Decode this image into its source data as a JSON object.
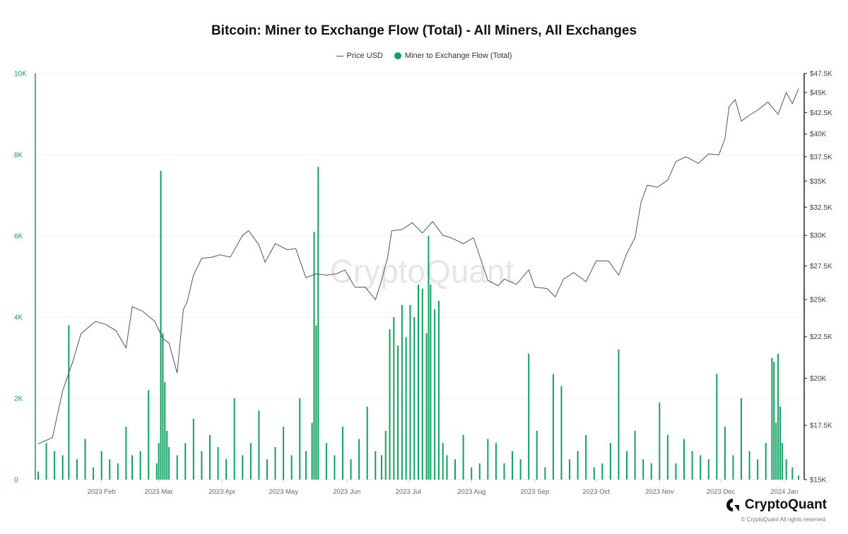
{
  "chart_data": {
    "type": "bar+line",
    "title": "Bitcoin: Miner to Exchange Flow (Total) - All Miners, All Exchanges",
    "legend": [
      {
        "label": "Price USD",
        "marker": "line",
        "color": "#555555"
      },
      {
        "label": "Miner to Exchange Flow (Total)",
        "marker": "dot",
        "color": "#10a060"
      }
    ],
    "x_range": [
      "2023-01-01",
      "2024-01-08"
    ],
    "x_ticks": [
      "2023 Feb",
      "2023 Mar",
      "2023 Apr",
      "2023 May",
      "2023 Jun",
      "2023 Jul",
      "2023 Aug",
      "2023 Sep",
      "2023 Oct",
      "2023 Nov",
      "2023 Dec",
      "2024 Jan"
    ],
    "y_left": {
      "label": "",
      "range": [
        0,
        10000
      ],
      "ticks": [
        "0",
        "2K",
        "4K",
        "6K",
        "8K",
        "10K"
      ],
      "color": "#1f9a5c"
    },
    "y_right": {
      "label": "",
      "scale": "log",
      "range": [
        15000,
        47500
      ],
      "ticks": [
        "$15K",
        "$17.5K",
        "$20K",
        "$22.5K",
        "$25K",
        "$27.5K",
        "$30K",
        "$32.5K",
        "$35K",
        "$37.5K",
        "$40K",
        "$42.5K",
        "$45K",
        "$47.5K"
      ],
      "tick_values": [
        15000,
        17500,
        20000,
        22500,
        25000,
        27500,
        30000,
        32500,
        35000,
        37500,
        40000,
        42500,
        45000,
        47500
      ]
    },
    "series": [
      {
        "name": "Miner to Exchange Flow (Total)",
        "type": "bar",
        "color": "#10a060",
        "x": [
          "2023-01-01",
          "2023-01-05",
          "2023-01-09",
          "2023-01-13",
          "2023-01-16",
          "2023-01-20",
          "2023-01-24",
          "2023-01-28",
          "2023-02-01",
          "2023-02-05",
          "2023-02-09",
          "2023-02-13",
          "2023-02-16",
          "2023-02-20",
          "2023-02-24",
          "2023-02-28",
          "2023-03-01",
          "2023-03-02",
          "2023-03-03",
          "2023-03-04",
          "2023-03-05",
          "2023-03-06",
          "2023-03-10",
          "2023-03-14",
          "2023-03-18",
          "2023-03-22",
          "2023-03-26",
          "2023-03-30",
          "2023-04-03",
          "2023-04-07",
          "2023-04-11",
          "2023-04-15",
          "2023-04-19",
          "2023-04-23",
          "2023-04-27",
          "2023-05-01",
          "2023-05-05",
          "2023-05-09",
          "2023-05-12",
          "2023-05-15",
          "2023-05-16",
          "2023-05-17",
          "2023-05-18",
          "2023-05-22",
          "2023-05-26",
          "2023-05-30",
          "2023-06-03",
          "2023-06-07",
          "2023-06-11",
          "2023-06-15",
          "2023-06-18",
          "2023-06-20",
          "2023-06-22",
          "2023-06-24",
          "2023-06-26",
          "2023-06-28",
          "2023-06-30",
          "2023-07-02",
          "2023-07-04",
          "2023-07-06",
          "2023-07-08",
          "2023-07-10",
          "2023-07-11",
          "2023-07-12",
          "2023-07-14",
          "2023-07-16",
          "2023-07-18",
          "2023-07-20",
          "2023-07-24",
          "2023-07-28",
          "2023-08-01",
          "2023-08-05",
          "2023-08-09",
          "2023-08-13",
          "2023-08-17",
          "2023-08-21",
          "2023-08-25",
          "2023-08-29",
          "2023-09-02",
          "2023-09-06",
          "2023-09-10",
          "2023-09-14",
          "2023-09-18",
          "2023-09-22",
          "2023-09-26",
          "2023-09-30",
          "2023-10-04",
          "2023-10-08",
          "2023-10-12",
          "2023-10-16",
          "2023-10-20",
          "2023-10-24",
          "2023-10-28",
          "2023-11-01",
          "2023-11-05",
          "2023-11-09",
          "2023-11-13",
          "2023-11-17",
          "2023-11-21",
          "2023-11-25",
          "2023-11-29",
          "2023-12-03",
          "2023-12-07",
          "2023-12-11",
          "2023-12-15",
          "2023-12-19",
          "2023-12-23",
          "2023-12-26",
          "2023-12-27",
          "2023-12-28",
          "2023-12-29",
          "2023-12-30",
          "2023-12-31",
          "2024-01-02",
          "2024-01-05",
          "2024-01-08"
        ],
        "values": [
          200,
          900,
          700,
          600,
          3800,
          500,
          1000,
          300,
          700,
          500,
          400,
          1300,
          600,
          700,
          2200,
          400,
          900,
          7600,
          3600,
          2400,
          1200,
          800,
          600,
          900,
          1500,
          700,
          1100,
          800,
          500,
          2000,
          600,
          900,
          1700,
          500,
          800,
          1300,
          600,
          2000,
          700,
          1400,
          6100,
          3800,
          7700,
          900,
          600,
          1300,
          500,
          1000,
          1800,
          700,
          600,
          1200,
          3700,
          4000,
          3300,
          4300,
          3500,
          4300,
          4000,
          4800,
          4700,
          3600,
          6000,
          4800,
          4200,
          4400,
          900,
          600,
          500,
          1100,
          300,
          400,
          1000,
          900,
          400,
          700,
          500,
          3100,
          1200,
          300,
          2600,
          2300,
          500,
          700,
          1100,
          300,
          400,
          900,
          3200,
          700,
          1200,
          500,
          400,
          1900,
          1100,
          400,
          1000,
          700,
          600,
          500,
          2600,
          1300,
          600,
          2000,
          700,
          500,
          900,
          3000,
          2900,
          1400,
          3100,
          1800,
          900,
          500,
          300,
          100
        ]
      },
      {
        "name": "Price USD",
        "type": "line",
        "color": "#555555",
        "x": [
          "2023-01-01",
          "2023-01-08",
          "2023-01-13",
          "2023-01-18",
          "2023-01-22",
          "2023-01-29",
          "2023-02-03",
          "2023-02-08",
          "2023-02-13",
          "2023-02-16",
          "2023-02-21",
          "2023-02-27",
          "2023-03-03",
          "2023-03-06",
          "2023-03-10",
          "2023-03-13",
          "2023-03-15",
          "2023-03-18",
          "2023-03-22",
          "2023-03-27",
          "2023-03-31",
          "2023-04-05",
          "2023-04-11",
          "2023-04-14",
          "2023-04-19",
          "2023-04-22",
          "2023-04-27",
          "2023-05-03",
          "2023-05-07",
          "2023-05-12",
          "2023-05-17",
          "2023-05-22",
          "2023-05-27",
          "2023-05-31",
          "2023-06-05",
          "2023-06-10",
          "2023-06-15",
          "2023-06-18",
          "2023-06-21",
          "2023-06-23",
          "2023-06-28",
          "2023-07-03",
          "2023-07-08",
          "2023-07-13",
          "2023-07-18",
          "2023-07-22",
          "2023-07-28",
          "2023-08-02",
          "2023-08-09",
          "2023-08-14",
          "2023-08-17",
          "2023-08-23",
          "2023-08-29",
          "2023-09-01",
          "2023-09-07",
          "2023-09-11",
          "2023-09-15",
          "2023-09-20",
          "2023-09-26",
          "2023-10-01",
          "2023-10-07",
          "2023-10-12",
          "2023-10-16",
          "2023-10-20",
          "2023-10-23",
          "2023-10-26",
          "2023-10-31",
          "2023-11-05",
          "2023-11-09",
          "2023-11-14",
          "2023-11-20",
          "2023-11-25",
          "2023-11-30",
          "2023-12-03",
          "2023-12-05",
          "2023-12-08",
          "2023-12-11",
          "2023-12-15",
          "2023-12-19",
          "2023-12-24",
          "2023-12-29",
          "2024-01-02",
          "2024-01-05",
          "2024-01-08"
        ],
        "values": [
          16600,
          16900,
          19300,
          21000,
          22700,
          23500,
          23300,
          22900,
          21800,
          24500,
          24200,
          23500,
          22400,
          22100,
          20300,
          24300,
          24900,
          26800,
          28100,
          28200,
          28400,
          28200,
          30000,
          30400,
          29200,
          27800,
          29300,
          28800,
          28900,
          26600,
          26900,
          26800,
          26900,
          27200,
          25900,
          25900,
          25000,
          26400,
          28200,
          30400,
          30500,
          31100,
          30200,
          31200,
          30000,
          29800,
          29300,
          29800,
          26400,
          26000,
          26500,
          26100,
          27200,
          25900,
          25800,
          25200,
          26500,
          27000,
          26300,
          27900,
          27900,
          26800,
          28500,
          29800,
          33000,
          34600,
          34400,
          35100,
          37000,
          37500,
          36800,
          37800,
          37700,
          39500,
          43200,
          44100,
          41500,
          42200,
          42800,
          43800,
          42300,
          45000,
          43600,
          45500
        ]
      }
    ]
  },
  "watermark": "CryptoQuant",
  "brand": {
    "name": "CryptoQuant",
    "copyright": "© CryptoQuant All rights reserved."
  }
}
